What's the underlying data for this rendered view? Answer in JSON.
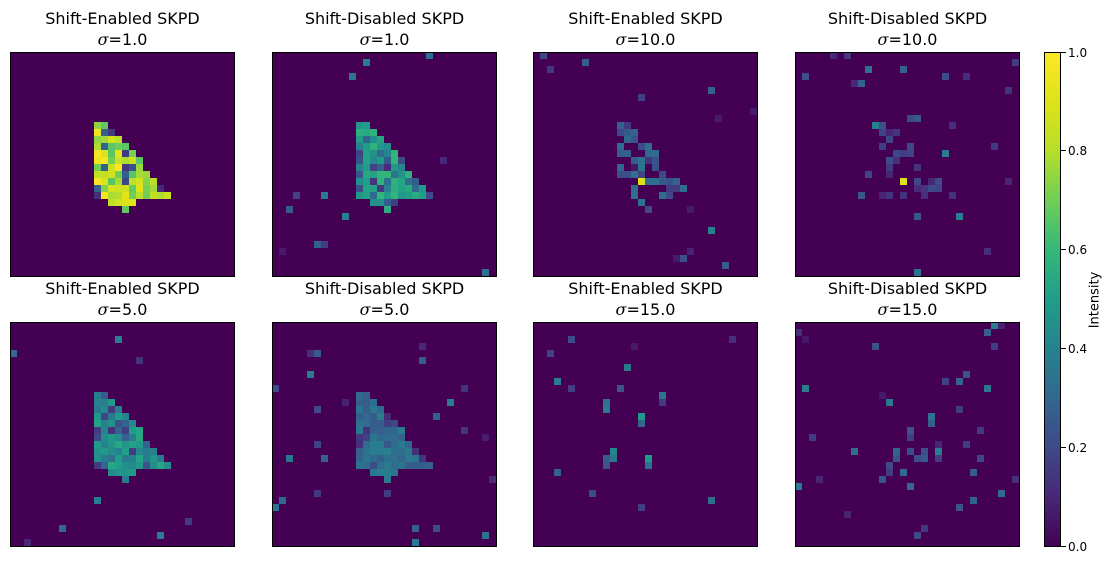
{
  "chart_data": [
    {
      "type": "heatmap",
      "title": "Shift-Enabled SKPD",
      "subtitle_prefix": "σ",
      "subtitle_value": "=1.0",
      "pattern": "filled",
      "intensity": 1.0,
      "noise": 0.0,
      "seed": 11
    },
    {
      "type": "heatmap",
      "title": "Shift-Disabled SKPD",
      "subtitle_prefix": "σ",
      "subtitle_value": "=1.0",
      "pattern": "filled",
      "intensity": 0.6,
      "noise": 0.03,
      "seed": 23
    },
    {
      "type": "heatmap",
      "title": "Shift-Enabled SKPD",
      "subtitle_prefix": "σ",
      "subtitle_value": "=10.0",
      "pattern": "sparse",
      "intensity": 0.35,
      "noise": 0.04,
      "seed": 37
    },
    {
      "type": "heatmap",
      "title": "Shift-Disabled SKPD",
      "subtitle_prefix": "σ",
      "subtitle_value": "=10.0",
      "pattern": "sparse",
      "intensity": 0.22,
      "noise": 0.06,
      "seed": 41
    },
    {
      "type": "heatmap",
      "title": "Shift-Enabled SKPD",
      "subtitle_prefix": "σ",
      "subtitle_value": "=5.0",
      "pattern": "filled",
      "intensity": 0.55,
      "noise": 0.02,
      "seed": 53
    },
    {
      "type": "heatmap",
      "title": "Shift-Disabled SKPD",
      "subtitle_prefix": "σ",
      "subtitle_value": "=5.0",
      "pattern": "filled",
      "intensity": 0.4,
      "noise": 0.07,
      "seed": 67
    },
    {
      "type": "heatmap",
      "title": "Shift-Enabled SKPD",
      "subtitle_prefix": "σ",
      "subtitle_value": "=15.0",
      "pattern": "dots",
      "intensity": 0.5,
      "noise": 0.03,
      "seed": 79
    },
    {
      "type": "heatmap",
      "title": "Shift-Disabled SKPD",
      "subtitle_prefix": "σ",
      "subtitle_value": "=15.0",
      "pattern": "dots",
      "intensity": 0.4,
      "noise": 0.09,
      "seed": 83
    }
  ],
  "colorbar": {
    "label": "Intensity",
    "range": [
      0.0,
      1.0
    ],
    "ticks": [
      0.0,
      0.2,
      0.4,
      0.6,
      0.8,
      1.0
    ],
    "tick_labels": [
      "0.0",
      "0.2",
      "0.4",
      "0.6",
      "0.8",
      "1.0"
    ],
    "colormap": "viridis"
  },
  "colors": {
    "background_cell": "#440154",
    "accent_high": "#fde725",
    "accent_mid": "#21918c"
  }
}
